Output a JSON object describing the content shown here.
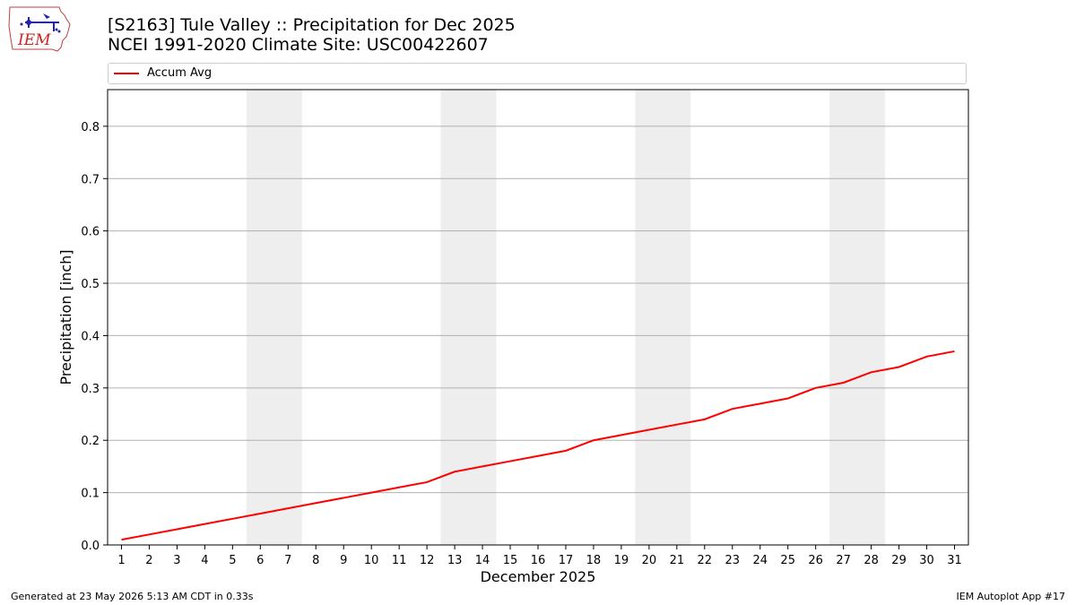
{
  "header": {
    "title_line1": "[S2163] Tule Valley :: Precipitation for Dec 2025",
    "title_line2": "NCEI 1991-2020 Climate Site: USC00422607"
  },
  "logo": {
    "text": "IEM"
  },
  "footer": {
    "left": "Generated at 23 May 2026 5:13 AM CDT in 0.33s",
    "right": "IEM Autoplot App #17"
  },
  "chart_data": {
    "type": "line",
    "xlabel": "December 2025",
    "ylabel": "Precipitation [inch]",
    "x": [
      1,
      2,
      3,
      4,
      5,
      6,
      7,
      8,
      9,
      10,
      11,
      12,
      13,
      14,
      15,
      16,
      17,
      18,
      19,
      20,
      21,
      22,
      23,
      24,
      25,
      26,
      27,
      28,
      29,
      30,
      31
    ],
    "xlim": [
      0.5,
      31.5
    ],
    "ylim": [
      0,
      0.87
    ],
    "yticks": [
      0.0,
      0.1,
      0.2,
      0.3,
      0.4,
      0.5,
      0.6,
      0.7,
      0.8
    ],
    "ytick_labels": [
      "0.0",
      "0.1",
      "0.2",
      "0.3",
      "0.4",
      "0.5",
      "0.6",
      "0.7",
      "0.8"
    ],
    "grid": "horizontal",
    "legend_position": "top",
    "weekend_shading": [
      [
        5.5,
        7.5
      ],
      [
        12.5,
        14.5
      ],
      [
        19.5,
        21.5
      ],
      [
        26.5,
        28.5
      ]
    ],
    "shading_color": "#eeeeee",
    "series": [
      {
        "name": "Accum Avg",
        "color": "#ff0000",
        "values": [
          0.01,
          0.02,
          0.03,
          0.04,
          0.05,
          0.06,
          0.07,
          0.08,
          0.09,
          0.1,
          0.11,
          0.12,
          0.14,
          0.15,
          0.16,
          0.17,
          0.18,
          0.2,
          0.21,
          0.22,
          0.23,
          0.24,
          0.26,
          0.27,
          0.28,
          0.3,
          0.31,
          0.33,
          0.34,
          0.36,
          0.37
        ]
      }
    ]
  }
}
